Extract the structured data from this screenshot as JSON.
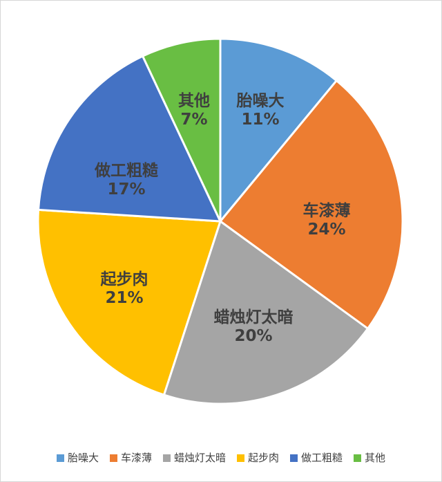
{
  "chart_data": {
    "type": "pie",
    "title": "",
    "categories": [
      "胎噪大",
      "车漆薄",
      "蜡烛灯太暗",
      "起步肉",
      "做工粗糙",
      "其他"
    ],
    "values": [
      11,
      24,
      20,
      21,
      17,
      7
    ],
    "percent_labels": [
      "11%",
      "24%",
      "20%",
      "21%",
      "17%",
      "7%"
    ],
    "colors": [
      "#5B9BD5",
      "#ED7D31",
      "#A5A5A5",
      "#FFC000",
      "#4472C4",
      "#69BE43"
    ],
    "start_angle_deg_from_top": 0,
    "direction": "clockwise",
    "slice_border_color": "#ffffff",
    "label_text_color": "#3f3f3f",
    "legend_position": "bottom",
    "legend_text_color": "#404040",
    "data_label_style": "category name and percentage inside each slice"
  }
}
